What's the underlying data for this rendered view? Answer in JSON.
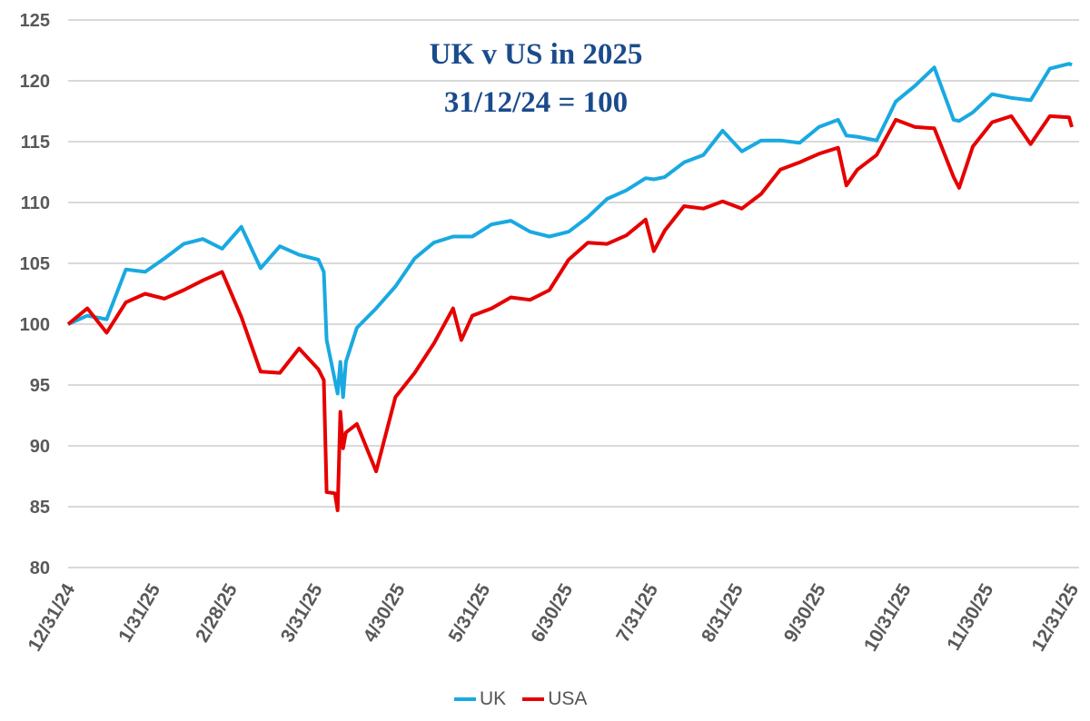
{
  "chart_data": {
    "type": "line",
    "title": "UK v US in 2025",
    "subtitle": "31/12/24 = 100",
    "xlabel": "",
    "ylabel": "",
    "ylim": [
      80,
      125
    ],
    "yticks": [
      80,
      85,
      90,
      95,
      100,
      105,
      110,
      115,
      120,
      125
    ],
    "xlim": [
      "2024-12-31",
      "2025-12-31"
    ],
    "xtick_labels": [
      "12/31/24",
      "1/31/25",
      "2/28/25",
      "3/31/25",
      "4/30/25",
      "5/31/25",
      "6/30/25",
      "7/31/25",
      "8/31/25",
      "9/30/25",
      "10/31/25",
      "11/30/25",
      "12/31/25"
    ],
    "xtick_dates": [
      "2024-12-31",
      "2025-01-31",
      "2025-02-28",
      "2025-03-31",
      "2025-04-30",
      "2025-05-31",
      "2025-06-30",
      "2025-07-31",
      "2025-08-31",
      "2025-09-30",
      "2025-10-31",
      "2025-11-30",
      "2025-12-31"
    ],
    "grid": true,
    "legend": "bottom",
    "x": [
      "2024-12-31",
      "2025-01-07",
      "2025-01-14",
      "2025-01-21",
      "2025-01-28",
      "2025-02-04",
      "2025-02-11",
      "2025-02-18",
      "2025-02-25",
      "2025-03-04",
      "2025-03-11",
      "2025-03-18",
      "2025-03-25",
      "2025-04-01",
      "2025-04-03",
      "2025-04-04",
      "2025-04-07",
      "2025-04-08",
      "2025-04-09",
      "2025-04-10",
      "2025-04-11",
      "2025-04-15",
      "2025-04-22",
      "2025-04-29",
      "2025-05-06",
      "2025-05-13",
      "2025-05-20",
      "2025-05-23",
      "2025-05-27",
      "2025-06-03",
      "2025-06-10",
      "2025-06-17",
      "2025-06-24",
      "2025-07-01",
      "2025-07-08",
      "2025-07-15",
      "2025-07-22",
      "2025-07-29",
      "2025-08-01",
      "2025-08-05",
      "2025-08-12",
      "2025-08-19",
      "2025-08-26",
      "2025-09-02",
      "2025-09-09",
      "2025-09-16",
      "2025-09-23",
      "2025-09-30",
      "2025-10-07",
      "2025-10-10",
      "2025-10-14",
      "2025-10-21",
      "2025-10-28",
      "2025-11-04",
      "2025-11-11",
      "2025-11-18",
      "2025-11-20",
      "2025-11-25",
      "2025-12-02",
      "2025-12-09",
      "2025-12-16",
      "2025-12-23",
      "2025-12-30",
      "2025-12-31"
    ],
    "series": [
      {
        "name": "UK",
        "color": "#19a9e1",
        "values": [
          100.0,
          100.7,
          100.4,
          104.5,
          104.3,
          105.4,
          106.6,
          107.0,
          106.2,
          108.0,
          104.6,
          106.4,
          105.7,
          105.3,
          104.3,
          98.7,
          95.4,
          94.3,
          96.9,
          94.0,
          96.9,
          99.7,
          101.3,
          103.1,
          105.4,
          106.7,
          107.2,
          107.2,
          107.2,
          108.2,
          108.5,
          107.6,
          107.2,
          107.6,
          108.8,
          110.3,
          111.0,
          112.0,
          111.9,
          112.1,
          113.3,
          113.9,
          115.9,
          114.2,
          115.1,
          115.1,
          114.9,
          116.2,
          116.8,
          115.5,
          115.4,
          115.1,
          118.3,
          119.6,
          121.1,
          116.8,
          116.7,
          117.4,
          118.9,
          118.6,
          118.4,
          121.0,
          121.4,
          121.3
        ]
      },
      {
        "name": "USA",
        "color": "#e60000",
        "values": [
          100.0,
          101.3,
          99.3,
          101.8,
          102.5,
          102.1,
          102.8,
          103.6,
          104.3,
          100.6,
          96.1,
          96.0,
          98.0,
          96.3,
          95.4,
          86.2,
          86.1,
          84.7,
          92.8,
          89.8,
          91.1,
          91.8,
          87.9,
          94.0,
          96.0,
          98.4,
          101.3,
          98.7,
          100.7,
          101.3,
          102.2,
          102.0,
          102.8,
          105.3,
          106.7,
          106.6,
          107.3,
          108.6,
          106.0,
          107.7,
          109.7,
          109.5,
          110.1,
          109.5,
          110.7,
          112.7,
          113.3,
          114.0,
          114.5,
          111.4,
          112.7,
          113.9,
          116.8,
          116.2,
          116.1,
          112.1,
          111.2,
          114.6,
          116.6,
          117.1,
          114.8,
          117.1,
          117.0,
          116.2
        ]
      }
    ]
  }
}
